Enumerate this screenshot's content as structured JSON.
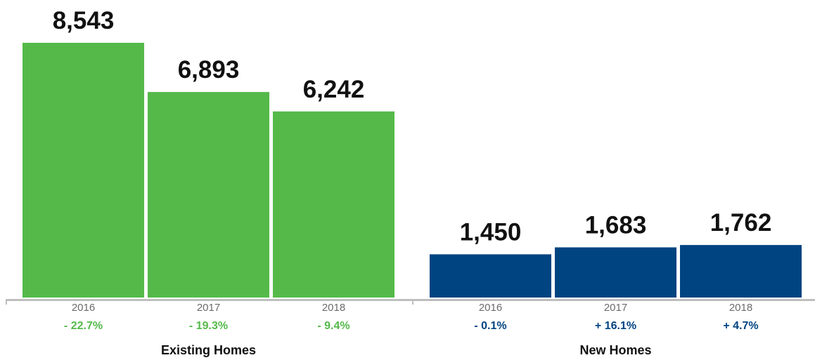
{
  "chart_data": {
    "type": "bar",
    "groups": [
      {
        "name": "Existing Homes",
        "color": "#55b94a",
        "change_color": "#55b94a",
        "bars": [
          {
            "year": "2016",
            "value": 8543,
            "label": "8,543",
            "change": "- 22.7%"
          },
          {
            "year": "2017",
            "value": 6893,
            "label": "6,893",
            "change": "- 19.3%"
          },
          {
            "year": "2018",
            "value": 6242,
            "label": "6,242",
            "change": "- 9.4%"
          }
        ]
      },
      {
        "name": "New Homes",
        "color": "#004481",
        "change_color": "#004481",
        "bars": [
          {
            "year": "2016",
            "value": 1450,
            "label": "1,450",
            "change": "- 0.1%"
          },
          {
            "year": "2017",
            "value": 1683,
            "label": "1,683",
            "change": "+ 16.1%"
          },
          {
            "year": "2018",
            "value": 1762,
            "label": "1,762",
            "change": "+ 4.7%"
          }
        ]
      }
    ],
    "ylim": [
      0,
      8543
    ],
    "axis_color": "#bfbfbf",
    "grid": false
  }
}
